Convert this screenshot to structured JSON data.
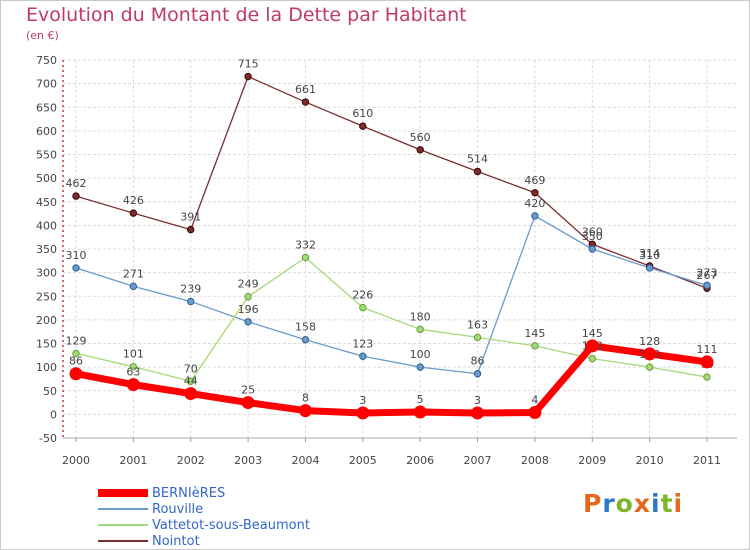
{
  "header": {
    "title": "Evolution du Montant de la Dette par Habitant",
    "subtitle": "(en €)"
  },
  "logo": {
    "text": "Proxiti",
    "colors": [
      "#e3671c",
      "#2e78c7",
      "#7fb52a",
      "#e3671c",
      "#2e78c7",
      "#7fb52a",
      "#e3671c"
    ]
  },
  "chart_data": {
    "type": "line",
    "title": "Evolution du Montant de la Dette par Habitant",
    "ylabel": "(en €)",
    "xlabel": "",
    "categories": [
      "2000",
      "2001",
      "2002",
      "2003",
      "2004",
      "2005",
      "2006",
      "2007",
      "2008",
      "2009",
      "2010",
      "2011"
    ],
    "ylim": [
      -50,
      750
    ],
    "yticks": [
      -50,
      0,
      50,
      100,
      150,
      200,
      250,
      300,
      350,
      400,
      450,
      500,
      550,
      600,
      650,
      700,
      750
    ],
    "grid": true,
    "legend": "bottom-left",
    "series": [
      {
        "name": "BERNIèRES",
        "color": "#ff0000",
        "width": 7,
        "values": [
          86,
          63,
          44,
          25,
          8,
          3,
          5,
          3,
          4,
          145,
          128,
          111
        ],
        "labels": [
          "86",
          "63",
          "44",
          "25",
          "8",
          "3",
          "5",
          "3",
          "4",
          "145",
          "128",
          "111"
        ]
      },
      {
        "name": "Rouville",
        "color": "#6a9bcc",
        "width": 1.3,
        "values": [
          310,
          271,
          239,
          196,
          158,
          123,
          100,
          86,
          420,
          350,
          310,
          273
        ],
        "labels": [
          "310",
          "271",
          "239",
          "196",
          "158",
          "123",
          "100",
          "86",
          "420",
          "350",
          "310",
          "273"
        ]
      },
      {
        "name": "Vattetot-sous-Beaumont",
        "color": "#a4d977",
        "width": 1.3,
        "values": [
          129,
          101,
          70,
          249,
          332,
          226,
          180,
          163,
          145,
          118,
          100,
          79
        ],
        "labels": [
          "129",
          "101",
          "70",
          "249",
          "332",
          "226",
          "180",
          "163",
          "145",
          "118",
          "100",
          "79"
        ]
      },
      {
        "name": "Nointot",
        "color": "#7a2f2f",
        "width": 1.3,
        "values": [
          462,
          426,
          391,
          715,
          661,
          610,
          560,
          514,
          469,
          360,
          314,
          267
        ],
        "labels": [
          "462",
          "426",
          "391",
          "715",
          "661",
          "610",
          "560",
          "514",
          "469",
          "360",
          "314",
          "267"
        ]
      }
    ]
  }
}
